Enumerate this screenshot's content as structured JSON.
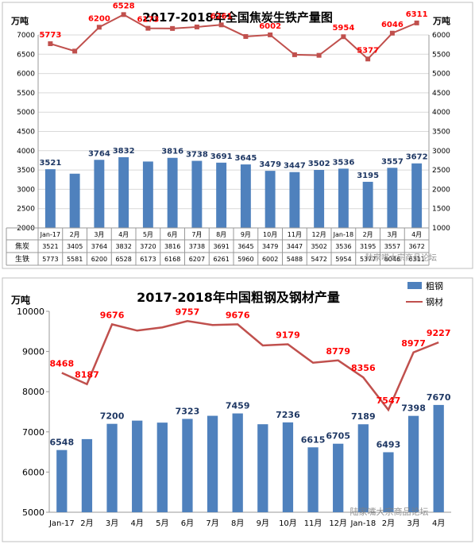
{
  "colors": {
    "bar": "#4f81bd",
    "line": "#c0504d",
    "bar_label": "#1f3864",
    "line_label": "#ff0000",
    "grid": "#d9d9d9",
    "frame": "#bfbfbf",
    "title": "#000000"
  },
  "chart_data": [
    {
      "type": "bar",
      "title": "2017-2018年全国焦炭生铁产量图",
      "y_left_unit": "万吨",
      "y_right_unit": "万吨",
      "categories": [
        "Jan-17",
        "2月",
        "3月",
        "4月",
        "5月",
        "6月",
        "7月",
        "8月",
        "9月",
        "10月",
        "11月",
        "12月",
        "Jan-18",
        "2月",
        "3月",
        "4月"
      ],
      "y_left_ticks": [
        "2000",
        "2500",
        "3000",
        "3500",
        "4000",
        "4500",
        "5000",
        "5500",
        "6000",
        "6500",
        "7000"
      ],
      "y_right_ticks": [
        "1000",
        "1500",
        "2000",
        "2500",
        "3000",
        "3500",
        "4000",
        "4500",
        "5000",
        "5500",
        "6000"
      ],
      "ylim_left": [
        2000,
        7000
      ],
      "ylim_right": [
        1000,
        6000
      ],
      "series": [
        {
          "name": "焦炭",
          "kind": "bar",
          "axis": "left",
          "values": [
            3521,
            3405,
            3764,
            3832,
            3720,
            3816,
            3738,
            3691,
            3645,
            3479,
            3447,
            3502,
            3536,
            3195,
            3557,
            3672
          ],
          "labels": [
            "3521",
            "",
            "3764",
            "3832",
            "",
            "3816",
            "3738",
            "3691",
            "3645",
            "3479",
            "3447",
            "3502",
            "3536",
            "3195",
            "3557",
            "3672"
          ]
        },
        {
          "name": "生铁",
          "kind": "line",
          "axis": "right",
          "values": [
            5773,
            5581,
            6200,
            6528,
            6173,
            6168,
            6207,
            6261,
            5960,
            6002,
            5488,
            5472,
            5954,
            5377,
            6046,
            6311
          ],
          "labels": [
            "5773",
            "",
            "6200",
            "6528",
            "6173",
            "",
            "",
            "6261",
            "",
            "6002",
            "",
            "",
            "5954",
            "5377",
            "6046",
            "6311"
          ]
        }
      ],
      "table": {
        "rows": [
          {
            "name": "焦炭",
            "cells": [
              "3521",
              "3405",
              "3764",
              "3832",
              "3720",
              "3816",
              "3738",
              "3691",
              "3645",
              "3479",
              "3447",
              "3502",
              "3536",
              "3195",
              "3557",
              "3672"
            ]
          },
          {
            "name": "生铁",
            "cells": [
              "5773",
              "5581",
              "6200",
              "6528",
              "6173",
              "6168",
              "6207",
              "6261",
              "5960",
              "6002",
              "5488",
              "5472",
              "5954",
              "5377",
              "6046",
              "6311"
            ]
          }
        ]
      },
      "grid": true
    },
    {
      "type": "bar",
      "title": "2017-2018年中国粗钢及钢材产量",
      "y_left_unit": "万吨",
      "categories": [
        "Jan-17",
        "2月",
        "3月",
        "4月",
        "5月",
        "6月",
        "7月",
        "8月",
        "9月",
        "10月",
        "11月",
        "12月",
        "Jan-18",
        "2月",
        "3月",
        "4月"
      ],
      "y_left_ticks": [
        "5000",
        "6000",
        "7000",
        "8000",
        "9000",
        "10000"
      ],
      "ylim_left": [
        5000,
        10000
      ],
      "legend": [
        "粗钢",
        "钢材"
      ],
      "legend_position": "top-right",
      "series": [
        {
          "name": "粗钢",
          "kind": "bar",
          "axis": "left",
          "values": [
            6548,
            6820,
            7200,
            7280,
            7230,
            7323,
            7400,
            7459,
            7190,
            7236,
            6615,
            6705,
            7189,
            6493,
            7398,
            7670
          ],
          "labels": [
            "6548",
            "",
            "7200",
            "",
            "",
            "7323",
            "",
            "7459",
            "",
            "7236",
            "6615",
            "6705",
            "7189",
            "6493",
            "7398",
            "7670"
          ]
        },
        {
          "name": "钢材",
          "kind": "line",
          "axis": "left",
          "values": [
            8468,
            8187,
            9676,
            9520,
            9600,
            9757,
            9660,
            9676,
            9150,
            9179,
            8720,
            8779,
            8356,
            7547,
            8977,
            9227
          ],
          "labels": [
            "8468",
            "8187",
            "9676",
            "",
            "",
            "9757",
            "",
            "9676",
            "",
            "9179",
            "",
            "8779",
            "8356",
            "7547",
            "8977",
            "9227"
          ]
        }
      ],
      "grid": false
    }
  ],
  "watermark": "陆家嘴大宗商品论坛"
}
